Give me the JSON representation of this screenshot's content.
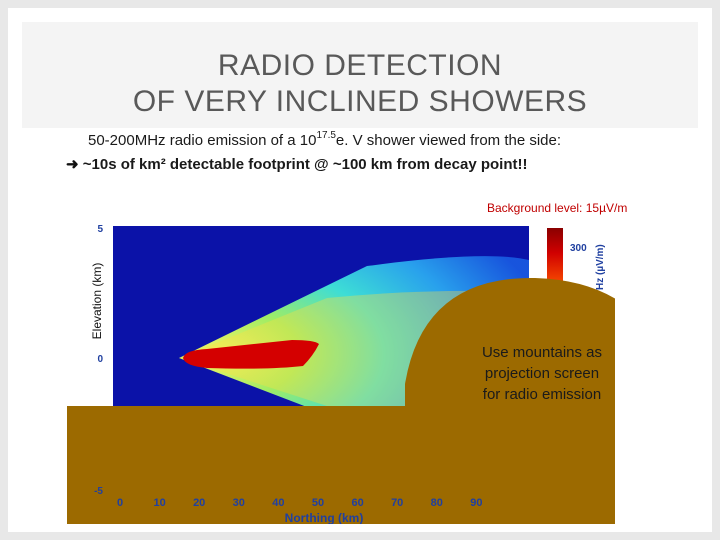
{
  "slide": {
    "title_line1": "RADIO DETECTION",
    "title_line2": "OF VERY INCLINED SHOWERS",
    "subtitle_before": "50-200MHz radio emission of a 10",
    "subtitle_sup": "17.5",
    "subtitle_after": "e. V shower viewed from the side:",
    "bullet_text": "~10s of km² detectable footprint @ ~100 km from decay point!!"
  },
  "figure": {
    "background_level": "Background level: 15µV/m",
    "ylabel": "Elevation (km)",
    "xlabel": "Northing (km)",
    "x_ticks": [
      "0",
      "10",
      "20",
      "30",
      "40",
      "50",
      "60",
      "70",
      "80",
      "90"
    ],
    "y_ticks": [
      "5",
      "0",
      "-5"
    ],
    "colorbar_tick": "300",
    "colorbar_label": "Hz (µV/m)",
    "mountain_text": [
      "Use mountains as",
      "projection screen",
      "for radio emission"
    ],
    "colors": {
      "field_background": "#0b12a8",
      "mountain": "#9c6a00",
      "shower_core": "#d40000",
      "label_red": "#c00000"
    }
  }
}
